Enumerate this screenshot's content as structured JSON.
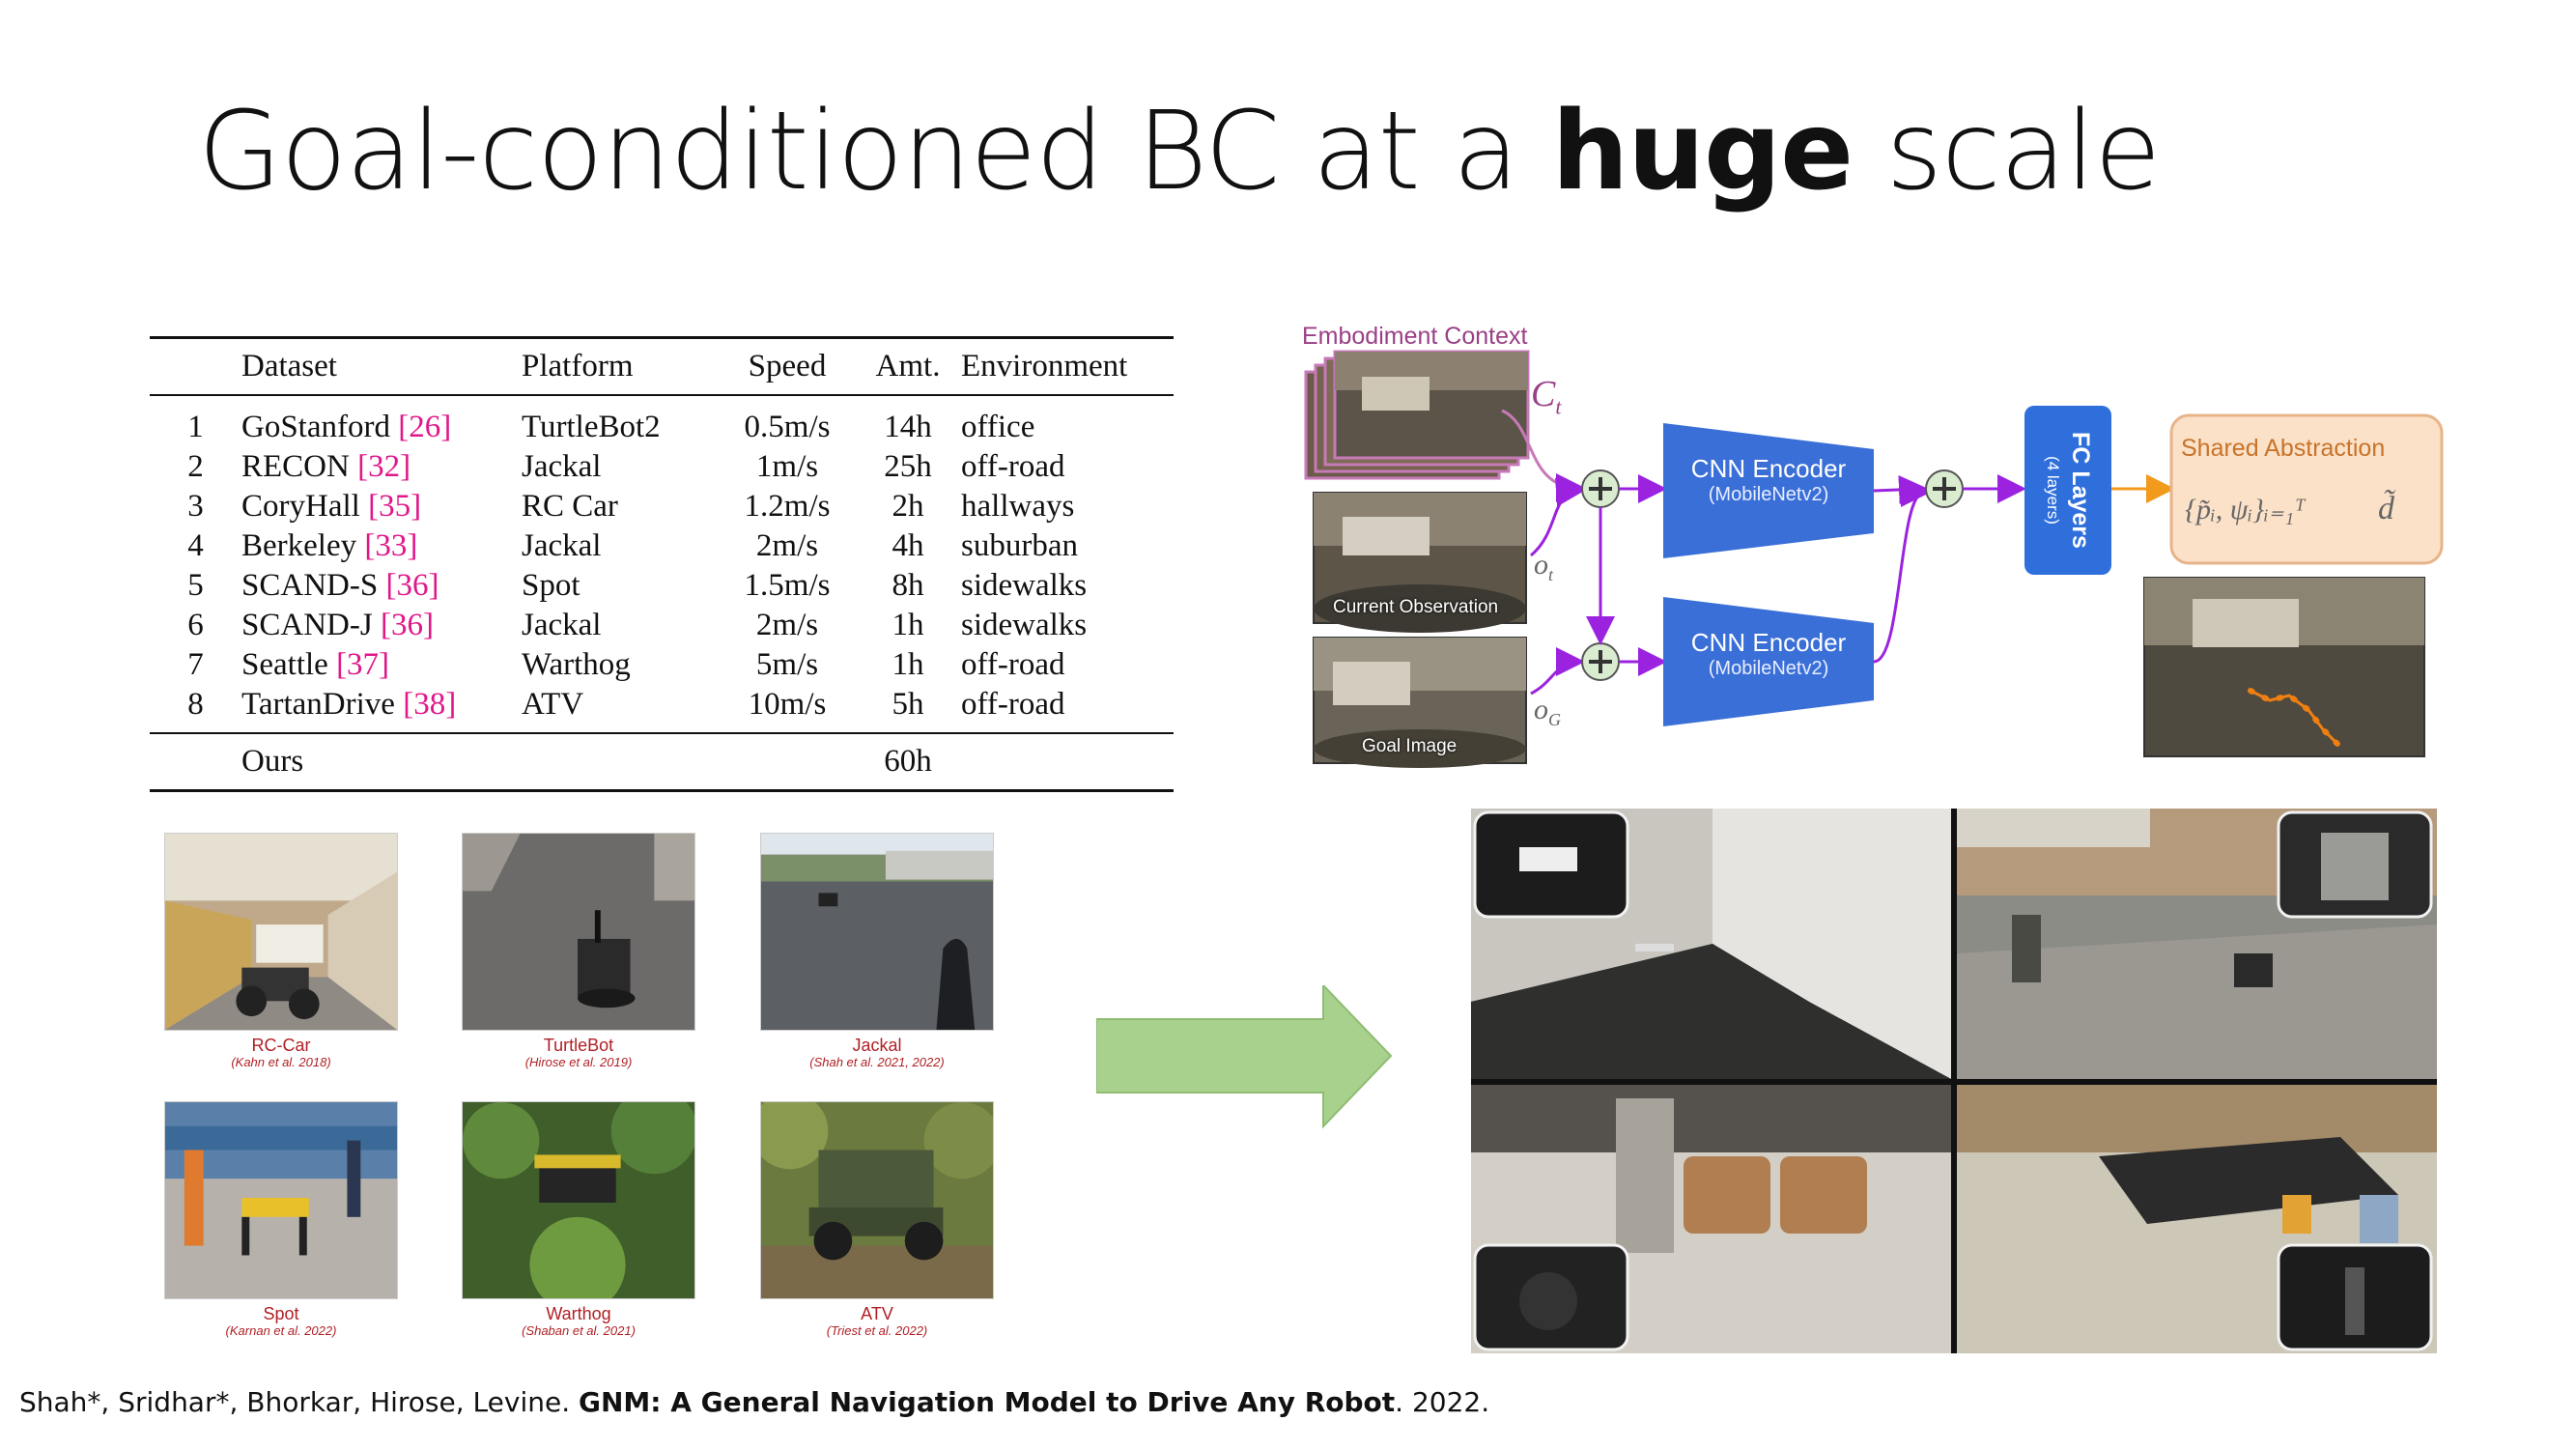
{
  "slide": {
    "title_pre": "Goal-conditioned BC at a ",
    "title_bold": "huge",
    "title_post": " scale"
  },
  "table": {
    "headers": [
      "",
      "Dataset",
      "Platform",
      "Speed",
      "Amt.",
      "Environment"
    ],
    "rows": [
      {
        "num": "1",
        "name": "GoStanford",
        "cite": "[26]",
        "platform": "TurtleBot2",
        "speed": "0.5m/s",
        "amount": "14h",
        "env": "office"
      },
      {
        "num": "2",
        "name": "RECON",
        "cite": "[32]",
        "platform": "Jackal",
        "speed": "1m/s",
        "amount": "25h",
        "env": "off-road"
      },
      {
        "num": "3",
        "name": "CoryHall",
        "cite": "[35]",
        "platform": "RC Car",
        "speed": "1.2m/s",
        "amount": "2h",
        "env": "hallways"
      },
      {
        "num": "4",
        "name": "Berkeley",
        "cite": "[33]",
        "platform": "Jackal",
        "speed": "2m/s",
        "amount": "4h",
        "env": "suburban"
      },
      {
        "num": "5",
        "name": "SCAND-S",
        "cite": "[36]",
        "platform": "Spot",
        "speed": "1.5m/s",
        "amount": "8h",
        "env": "sidewalks"
      },
      {
        "num": "6",
        "name": "SCAND-J",
        "cite": "[36]",
        "platform": "Jackal",
        "speed": "2m/s",
        "amount": "1h",
        "env": "sidewalks"
      },
      {
        "num": "7",
        "name": "Seattle",
        "cite": "[37]",
        "platform": "Warthog",
        "speed": "5m/s",
        "amount": "1h",
        "env": "off-road"
      },
      {
        "num": "8",
        "name": "TartanDrive",
        "cite": "[38]",
        "platform": "ATV",
        "speed": "10m/s",
        "amount": "5h",
        "env": "off-road"
      }
    ],
    "total_label": "Ours",
    "total_amount": "60h",
    "cite_color": "#e0178a"
  },
  "robots": [
    {
      "name": "RC-Car",
      "ref": "(Kahn et al. 2018)"
    },
    {
      "name": "TurtleBot",
      "ref": "(Hirose et al. 2019)"
    },
    {
      "name": "Jackal",
      "ref": "(Shah et al. 2021, 2022)"
    },
    {
      "name": "Spot",
      "ref": "(Karnan et al. 2022)"
    },
    {
      "name": "Warthog",
      "ref": "(Shaban et al. 2021)"
    },
    {
      "name": "ATV",
      "ref": "(Triest et al. 2022)"
    }
  ],
  "diagram": {
    "embodiment_context": "Embodiment Context",
    "current_observation": "Current Observation",
    "goal_image": "Goal Image",
    "encoder_title": "CNN Encoder",
    "encoder_sub": "(MobileNetv2)",
    "fc_title": "FC Layers",
    "fc_sub": "(4 layers)",
    "shared_abstraction": "Shared Abstraction",
    "sym_context": "C",
    "sym_context_sub": "t",
    "sym_obs": "o",
    "sym_obs_sub": "t",
    "sym_goal": "o",
    "sym_goal_sub": "G",
    "formula": "{p̃ᵢ, ψᵢ}ᵢ₌₁ᵀ",
    "distance": "d̃",
    "colors": {
      "encoder": "#3a6fd8",
      "fc": "#2f6fdc",
      "shared_fill": "#fbe1c8",
      "shared_border": "#e7b48a",
      "context_arrow": "#c77ab8",
      "flow_arrow": "#9b23e0",
      "output_arrow": "#f19a1c",
      "plus_fill": "#d9ecd0"
    }
  },
  "arrow": {
    "fill": "#a9d18e",
    "stroke": "#8fbc72"
  },
  "citation": {
    "authors": "Shah*, Sridhar*, Bhorkar, Hirose, Levine. ",
    "paper": "GNM: A General Navigation Model to Drive Any Robot",
    "year": ". 2022."
  }
}
